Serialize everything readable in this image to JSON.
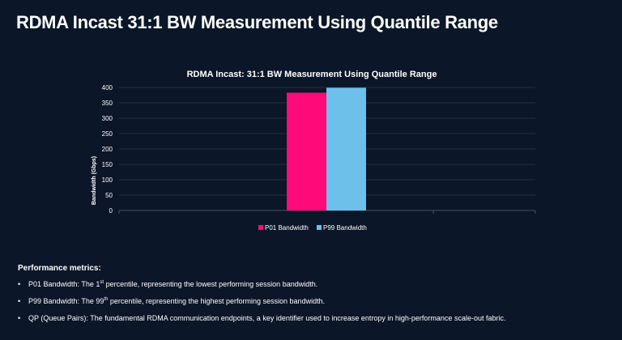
{
  "slide": {
    "title": "RDMA Incast 31:1 BW Measurement Using Quantile Range"
  },
  "chart_data": {
    "type": "bar",
    "title": "RDMA Incast: 31:1 BW Measurement Using Quantile Range",
    "xlabel": "",
    "ylabel": "Bandwidth (Gbps)",
    "ylim": [
      0,
      400
    ],
    "yticks": [
      0,
      50,
      100,
      150,
      200,
      250,
      300,
      350,
      400
    ],
    "grid": true,
    "legend_position": "bottom",
    "series": [
      {
        "name": "P01 Bandwidth",
        "values": [
          383
        ],
        "color": "#ff0a78"
      },
      {
        "name": "P99 Bandwidth",
        "values": [
          399
        ],
        "color": "#6cc0ea"
      }
    ]
  },
  "metrics": {
    "heading": "Performance metrics:",
    "bullet": "•",
    "items": [
      {
        "before": "P01 Bandwidth: The 1",
        "sup": "st",
        "after": " percentile, representing the lowest performing session bandwidth."
      },
      {
        "before": "P99 Bandwidth: The 99",
        "sup": "th",
        "after": " percentile, representing the highest performing session bandwidth."
      },
      {
        "before": "QP (Queue Pairs): The fundamental RDMA communication endpoints, a key identifier used to increase entropy in high-performance scale-out fabric.",
        "sup": "",
        "after": ""
      }
    ]
  },
  "colors": {
    "background": "#0b1628",
    "gridline": "#2c3a50",
    "axis": "#56657a",
    "text": "#ffffff"
  }
}
